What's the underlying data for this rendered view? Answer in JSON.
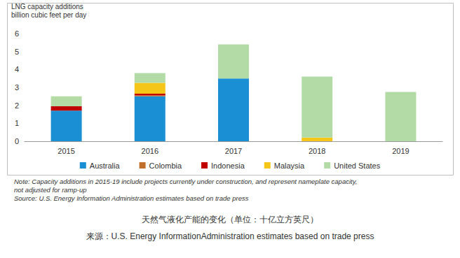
{
  "chart_data": {
    "type": "bar",
    "title": "LNG capacity additions",
    "subtitle": "billion cubic feet per day",
    "categories": [
      "2015",
      "2016",
      "2017",
      "2018",
      "2019"
    ],
    "series": [
      {
        "name": "Australia",
        "color": "#1a8fd3",
        "values": [
          1.7,
          2.5,
          3.5,
          0,
          0
        ]
      },
      {
        "name": "Colombia",
        "color": "#c0702a",
        "values": [
          0,
          0.05,
          0,
          0,
          0
        ]
      },
      {
        "name": "Indonesia",
        "color": "#c00000",
        "values": [
          0.25,
          0.1,
          0,
          0,
          0
        ]
      },
      {
        "name": "Malaysia",
        "color": "#f5c518",
        "values": [
          0,
          0.6,
          0,
          0.2,
          0
        ]
      },
      {
        "name": "United States",
        "color": "#b3dba6",
        "values": [
          0.55,
          0.55,
          1.9,
          3.4,
          2.75
        ]
      }
    ],
    "ylim": [
      0,
      6
    ],
    "yticks": [
      0,
      1,
      2,
      3,
      4,
      5,
      6
    ],
    "stacked": true,
    "grid": false,
    "legend": "bottom",
    "note": [
      "Note: Capacity additions in 2015-19 include projects currently under construction, and represent nameplate capacity,",
      "not adjusted for ramp-up"
    ],
    "source": "Source: U.S. Energy Information Administration estimates based on trade press",
    "caption": "天然气液化产能的变化（单位：十亿立方英尺）",
    "caption_source": "来源：U.S. Energy InformationAdministration estimates based on trade press"
  }
}
